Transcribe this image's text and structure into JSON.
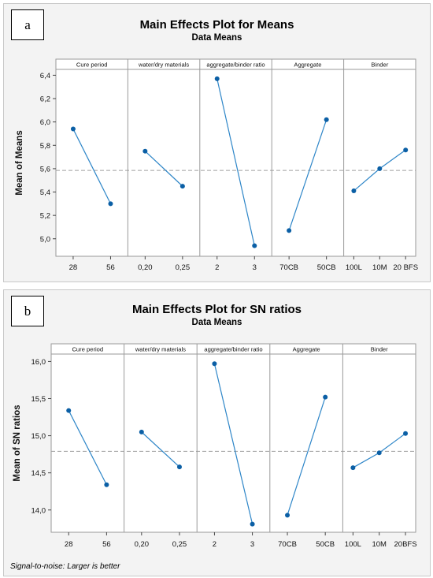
{
  "chart_data": [
    {
      "type": "line",
      "label": "a",
      "title": "Main Effects Plot for Means",
      "subtitle": "Data Means",
      "ylabel": "Mean of Means",
      "ylim": [
        4.85,
        6.45
      ],
      "yticks": [
        5.0,
        5.2,
        5.4,
        5.6,
        5.8,
        6.0,
        6.2,
        6.4
      ],
      "ytick_labels": [
        "5,0",
        "5,2",
        "5,4",
        "5,6",
        "5,8",
        "6,0",
        "6,2",
        "6,4"
      ],
      "reference_line": 5.585,
      "grid": false,
      "panels": [
        {
          "name": "Cure period",
          "categories": [
            "28",
            "56"
          ],
          "values": [
            5.94,
            5.3
          ]
        },
        {
          "name": "water/dry materials",
          "categories": [
            "0,20",
            "0,25"
          ],
          "values": [
            5.75,
            5.45
          ]
        },
        {
          "name": "aggregate/binder ratio",
          "categories": [
            "2",
            "3"
          ],
          "values": [
            6.37,
            4.94
          ]
        },
        {
          "name": "Aggregate",
          "categories": [
            "70CB",
            "50CB"
          ],
          "values": [
            5.07,
            6.02
          ]
        },
        {
          "name": "Binder",
          "categories": [
            "100L",
            "10M",
            "20 BFS"
          ],
          "values": [
            5.41,
            5.6,
            5.76
          ]
        }
      ]
    },
    {
      "type": "line",
      "label": "b",
      "title": "Main Effects Plot for SN ratios",
      "subtitle": "Data Means",
      "ylabel": "Mean of SN ratios",
      "ylim": [
        13.7,
        16.1
      ],
      "yticks": [
        14.0,
        14.5,
        15.0,
        15.5,
        16.0
      ],
      "ytick_labels": [
        "14,0",
        "14,5",
        "15,0",
        "15,5",
        "16,0"
      ],
      "reference_line": 14.79,
      "grid": false,
      "footnote": "Signal-to-noise: Larger is better",
      "panels": [
        {
          "name": "Cure period",
          "categories": [
            "28",
            "56"
          ],
          "values": [
            15.34,
            14.34
          ]
        },
        {
          "name": "water/dry materials",
          "categories": [
            "0,20",
            "0,25"
          ],
          "values": [
            15.05,
            14.58
          ]
        },
        {
          "name": "aggregate/binder ratio",
          "categories": [
            "2",
            "3"
          ],
          "values": [
            15.97,
            13.81
          ]
        },
        {
          "name": "Aggregate",
          "categories": [
            "70CB",
            "50CB"
          ],
          "values": [
            13.93,
            15.52
          ]
        },
        {
          "name": "Binder",
          "categories": [
            "100L",
            "10M",
            "20BFS"
          ],
          "values": [
            14.57,
            14.77,
            15.03
          ]
        }
      ]
    }
  ]
}
